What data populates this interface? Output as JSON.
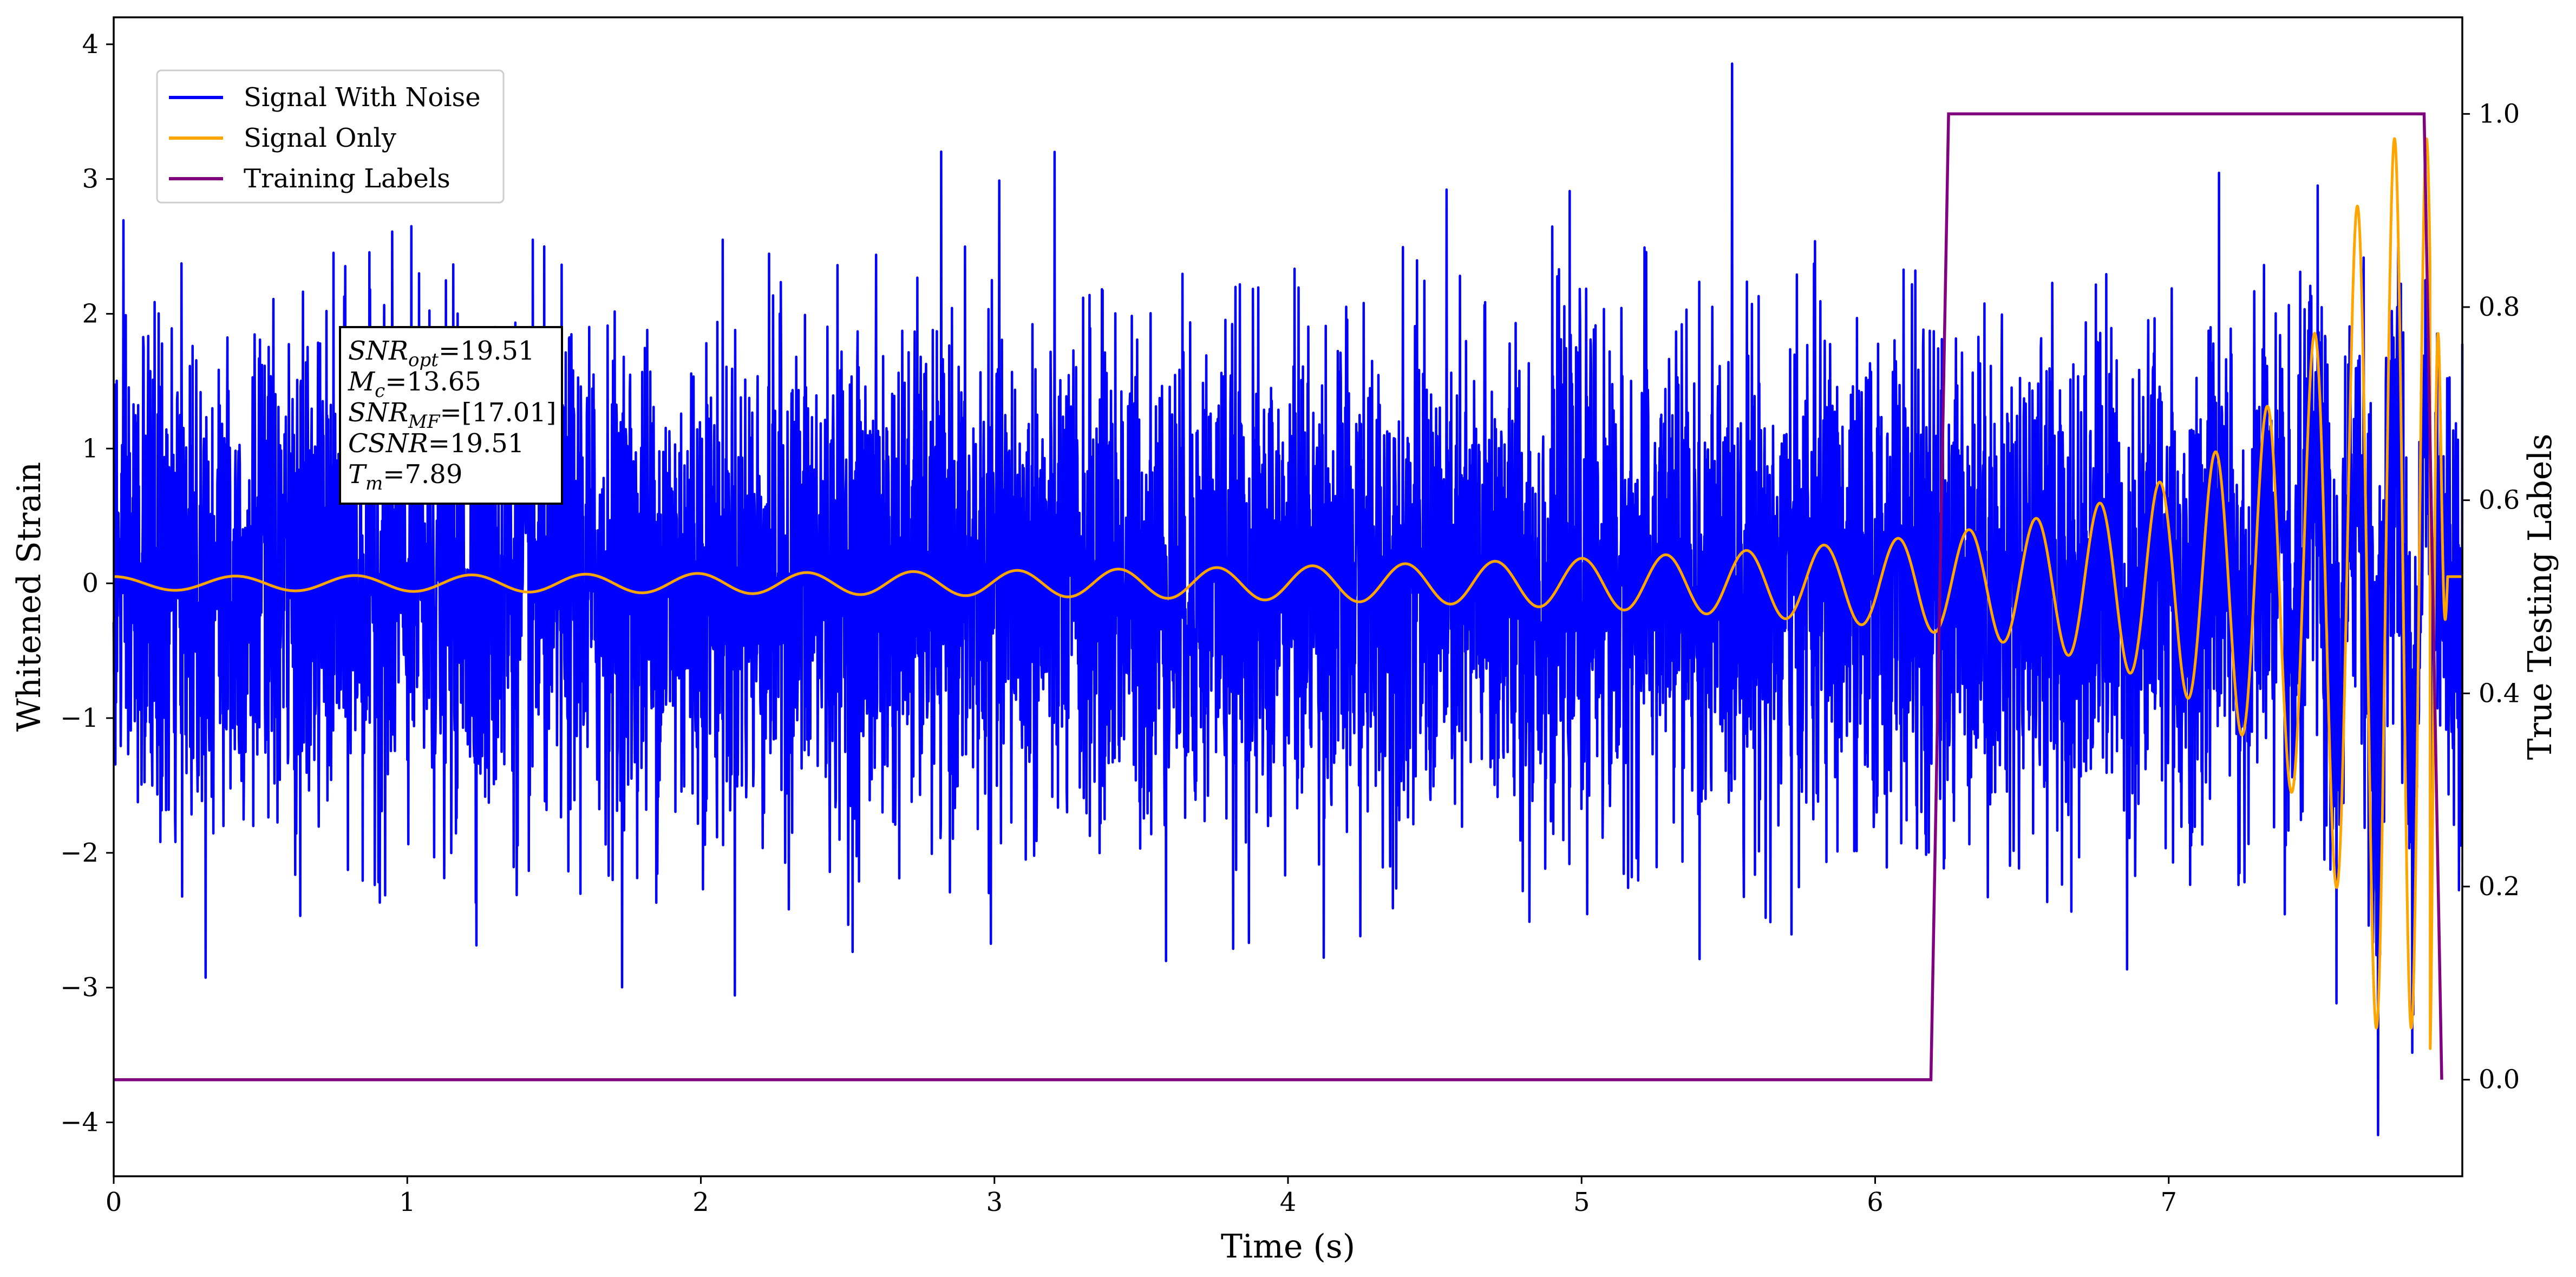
{
  "chart_data": {
    "type": "line",
    "xlabel": "Time (s)",
    "ylabel": "Whitened Strain",
    "y2label": "True Testing Labels",
    "xlim": [
      0,
      8.0
    ],
    "ylim": [
      -4.4,
      4.2
    ],
    "y2lim": [
      -0.1,
      1.1
    ],
    "xticks": [
      "0",
      "1",
      "2",
      "3",
      "4",
      "5",
      "6",
      "7"
    ],
    "xtick_values": [
      0,
      1,
      2,
      3,
      4,
      5,
      6,
      7
    ],
    "yticks": [
      "−4",
      "−3",
      "−2",
      "−1",
      "0",
      "1",
      "2",
      "3",
      "4"
    ],
    "ytick_values": [
      -4,
      -3,
      -2,
      -1,
      0,
      1,
      2,
      3,
      4
    ],
    "y2ticks": [
      "0.0",
      "0.2",
      "0.4",
      "0.6",
      "0.8",
      "1.0"
    ],
    "y2tick_values": [
      0.0,
      0.2,
      0.4,
      0.6,
      0.8,
      1.0
    ],
    "legend_position": "top-left",
    "series": [
      {
        "name": "Signal With Noise",
        "color": "#0000ff",
        "axis": "left",
        "kind": "noise",
        "noise_std": 0.9,
        "noise_peak_min": -4.02,
        "noise_peak_max": 3.82
      },
      {
        "name": "Signal Only",
        "color": "#ffa500",
        "axis": "left",
        "kind": "chirp",
        "start_amplitude": 0.05,
        "merger_time": 7.89,
        "peak_positive": 3.3,
        "peak_negative": -3.5,
        "ringdown_end_time": 7.95,
        "post_merger_value": 0.05
      },
      {
        "name": "Training Labels",
        "color": "#800080",
        "axis": "right",
        "x": [
          0,
          6.19,
          6.25,
          7.87,
          7.93
        ],
        "y": [
          0,
          0,
          1,
          1,
          0
        ]
      }
    ],
    "annotation": {
      "lines": [
        {
          "sym": "SNR",
          "sub": "opt",
          "val": "=19.51"
        },
        {
          "sym": "M",
          "sub": "c",
          "val": "=13.65"
        },
        {
          "sym": "SNR",
          "sub": "MF",
          "val": "=[17.01]"
        },
        {
          "sym": "CSNR",
          "sub": "",
          "val": "=19.51"
        },
        {
          "sym": "T",
          "sub": "m",
          "val": "=7.89"
        }
      ]
    }
  }
}
